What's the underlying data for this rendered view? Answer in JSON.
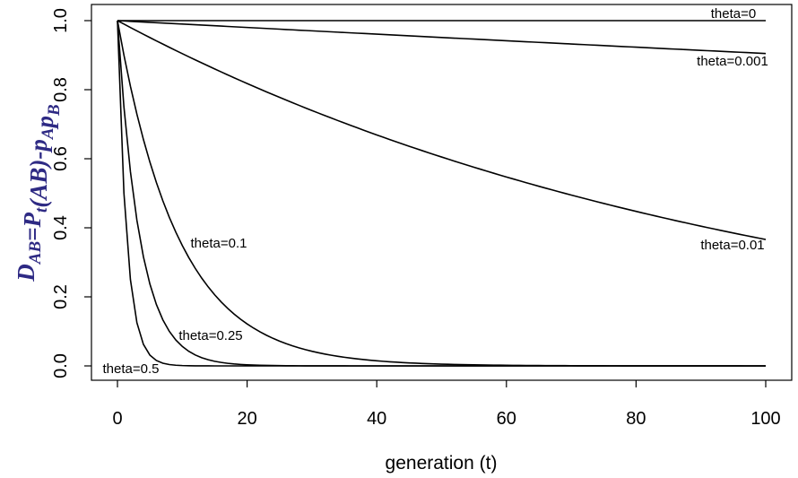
{
  "chart_data": {
    "type": "line",
    "xlabel": "generation (t)",
    "ylabel": {
      "color": "#2e2a84",
      "parts": [
        {
          "text": "D",
          "sub": false
        },
        {
          "text": "AB",
          "sub": true
        },
        {
          "text": "=P",
          "sub": false
        },
        {
          "text": "t",
          "sub": true
        },
        {
          "text": "(AB)-p",
          "sub": false
        },
        {
          "text": "A",
          "sub": true
        },
        {
          "text": "p",
          "sub": false
        },
        {
          "text": "B",
          "sub": true
        }
      ]
    },
    "xlim": [
      0,
      100
    ],
    "ylim": [
      0,
      1
    ],
    "xticks": [
      0,
      20,
      40,
      60,
      80,
      100
    ],
    "yticks": [
      0.0,
      0.2,
      0.4,
      0.6,
      0.8,
      1.0
    ],
    "ytick_labels": [
      "0.0",
      "0.2",
      "0.4",
      "0.6",
      "0.8",
      "1.0"
    ],
    "formula": "D_t = (1 - theta)^t",
    "t_range": [
      0,
      100
    ],
    "line_color": "#000000",
    "series": [
      {
        "label": "theta=0",
        "theta": 0
      },
      {
        "label": "theta=0.001",
        "theta": 0.001
      },
      {
        "label": "theta=0.01",
        "theta": 0.01
      },
      {
        "label": "theta=0.1",
        "theta": 0.1
      },
      {
        "label": "theta=0.25",
        "theta": 0.25
      },
      {
        "label": "theta=0.5",
        "theta": 0.5
      }
    ],
    "grid": false,
    "legend": "none"
  }
}
